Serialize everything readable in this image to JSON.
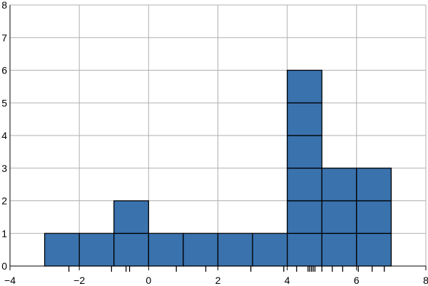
{
  "chart_data": {
    "type": "bar",
    "title": "",
    "xlabel": "",
    "ylabel": "",
    "xlim": [
      -4,
      8
    ],
    "ylim": [
      0,
      8
    ],
    "grid": true,
    "bin_width": 1,
    "bars": [
      {
        "x0": -3,
        "x1": -2,
        "count": 1
      },
      {
        "x0": -2,
        "x1": -1,
        "count": 1
      },
      {
        "x0": -1,
        "x1": 0,
        "count": 2
      },
      {
        "x0": 0,
        "x1": 1,
        "count": 1
      },
      {
        "x0": 1,
        "x1": 2,
        "count": 1
      },
      {
        "x0": 2,
        "x1": 3,
        "count": 1
      },
      {
        "x0": 3,
        "x1": 4,
        "count": 1
      },
      {
        "x0": 4,
        "x1": 5,
        "count": 6
      },
      {
        "x0": 5,
        "x1": 6,
        "count": 3
      },
      {
        "x0": 6,
        "x1": 7,
        "count": 3
      }
    ],
    "rug_values": [
      -2.3,
      -1.07,
      -0.65,
      -0.55,
      0.8,
      1.65,
      2.95,
      3.9,
      4.27,
      4.6,
      4.65,
      4.7,
      4.75,
      4.8,
      5.0,
      5.3,
      5.6,
      6.05,
      6.45,
      6.8
    ],
    "x_ticks": [
      {
        "value": -4,
        "label": "−4"
      },
      {
        "value": -2,
        "label": "−2"
      },
      {
        "value": 0,
        "label": "0"
      },
      {
        "value": 2,
        "label": "2"
      },
      {
        "value": 4,
        "label": "4"
      },
      {
        "value": 6,
        "label": "6"
      },
      {
        "value": 8,
        "label": "8"
      }
    ],
    "y_ticks": [
      {
        "value": 0,
        "label": "0"
      },
      {
        "value": 1,
        "label": "1"
      },
      {
        "value": 2,
        "label": "2"
      },
      {
        "value": 3,
        "label": "3"
      },
      {
        "value": 4,
        "label": "4"
      },
      {
        "value": 5,
        "label": "5"
      },
      {
        "value": 6,
        "label": "6"
      },
      {
        "value": 7,
        "label": "7"
      },
      {
        "value": 8,
        "label": "8"
      }
    ],
    "colors": {
      "bar_fill": "#3a72ad",
      "bar_edge": "#000000",
      "grid": "#b0b0b0",
      "axis": "#000000"
    }
  }
}
